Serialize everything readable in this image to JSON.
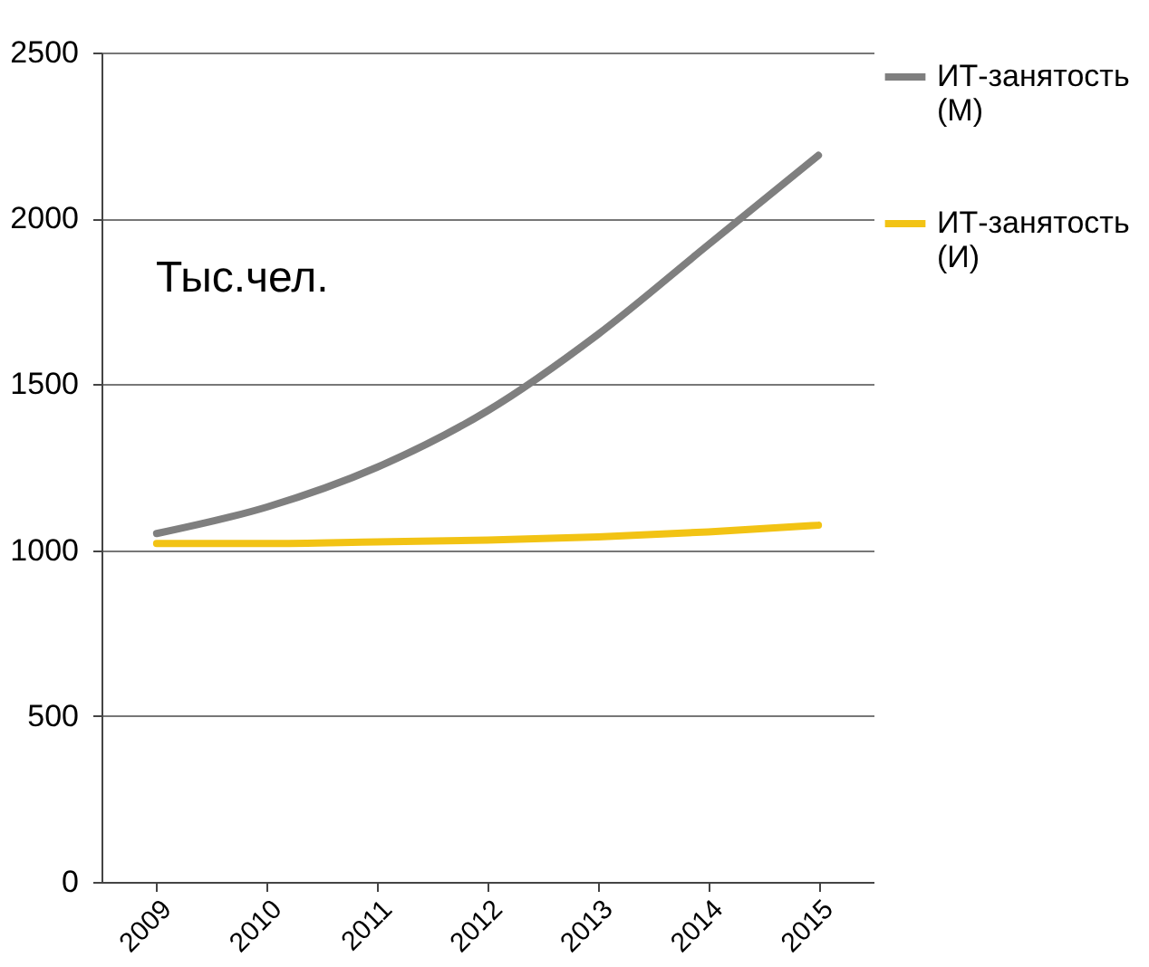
{
  "chart_data": {
    "type": "line",
    "categories": [
      "2009",
      "2010",
      "2011",
      "2012",
      "2013",
      "2014",
      "2015"
    ],
    "series": [
      {
        "name": "ИТ-занятость (М)",
        "color": "#7f7f7f",
        "values": [
          1050,
          1130,
          1250,
          1420,
          1650,
          1920,
          2190
        ]
      },
      {
        "name": "ИТ-занятость (И)",
        "color": "#f2c314",
        "values": [
          1020,
          1020,
          1025,
          1030,
          1040,
          1055,
          1075
        ]
      }
    ],
    "ylim": [
      0,
      2500
    ],
    "yticks": [
      0,
      500,
      1000,
      1500,
      2000,
      2500
    ],
    "grid": "y",
    "legend": "right",
    "marker": "none",
    "line_style": "solid",
    "annotations": [
      "Тыс.чел."
    ]
  }
}
